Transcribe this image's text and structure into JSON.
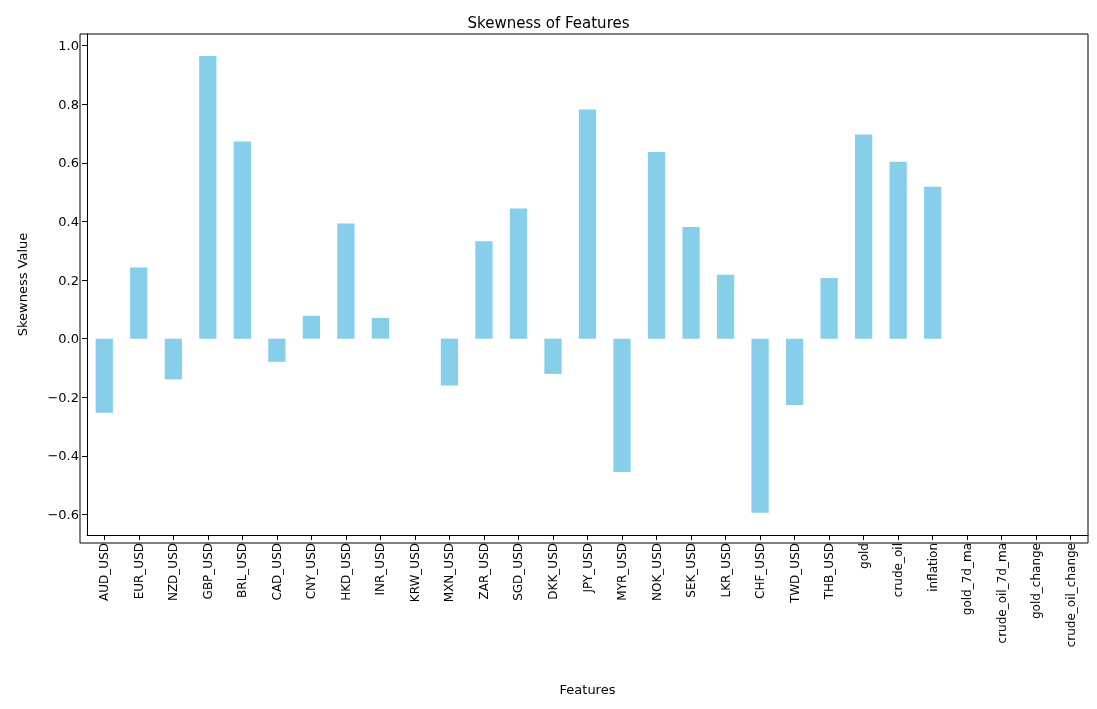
{
  "chart_data": {
    "type": "bar",
    "title": "Skewness of Features",
    "xlabel": "Features",
    "ylabel": "Skewness Value",
    "categories": [
      "AUD_USD",
      "EUR_USD",
      "NZD_USD",
      "GBP_USD",
      "BRL_USD",
      "CAD_USD",
      "CNY_USD",
      "HKD_USD",
      "INR_USD",
      "KRW_USD",
      "MXN_USD",
      "ZAR_USD",
      "SGD_USD",
      "DKK_USD",
      "JPY_USD",
      "MYR_USD",
      "NOK_USD",
      "SEK_USD",
      "LKR_USD",
      "CHF_USD",
      "TWD_USD",
      "THB_USD",
      "gold",
      "crude_oil",
      "inflation",
      "gold_7d_ma",
      "crude_oil_7d_ma",
      "gold_change",
      "crude_oil_change"
    ],
    "values": [
      -0.253,
      0.243,
      -0.139,
      0.965,
      0.673,
      -0.079,
      0.078,
      0.393,
      0.071,
      null,
      -0.16,
      0.333,
      0.444,
      -0.12,
      0.782,
      -0.455,
      0.637,
      0.381,
      0.218,
      -0.594,
      -0.226,
      0.207,
      0.697,
      0.604,
      0.519,
      null,
      null,
      null,
      null
    ],
    "color": "#87ceeb",
    "ylim": [
      -0.67,
      1.04
    ],
    "yticks": [
      {
        "value": -0.6,
        "label": "−0.6"
      },
      {
        "value": -0.4,
        "label": "−0.4"
      },
      {
        "value": -0.2,
        "label": "−0.2"
      },
      {
        "value": 0,
        "label": "0.0"
      },
      {
        "value": 0.2,
        "label": "0.2"
      },
      {
        "value": 0.4,
        "label": "0.4"
      },
      {
        "value": 0.6,
        "label": "0.6"
      },
      {
        "value": 0.8,
        "label": "0.8"
      },
      {
        "value": 1,
        "label": "1.0"
      }
    ],
    "grid": false
  }
}
